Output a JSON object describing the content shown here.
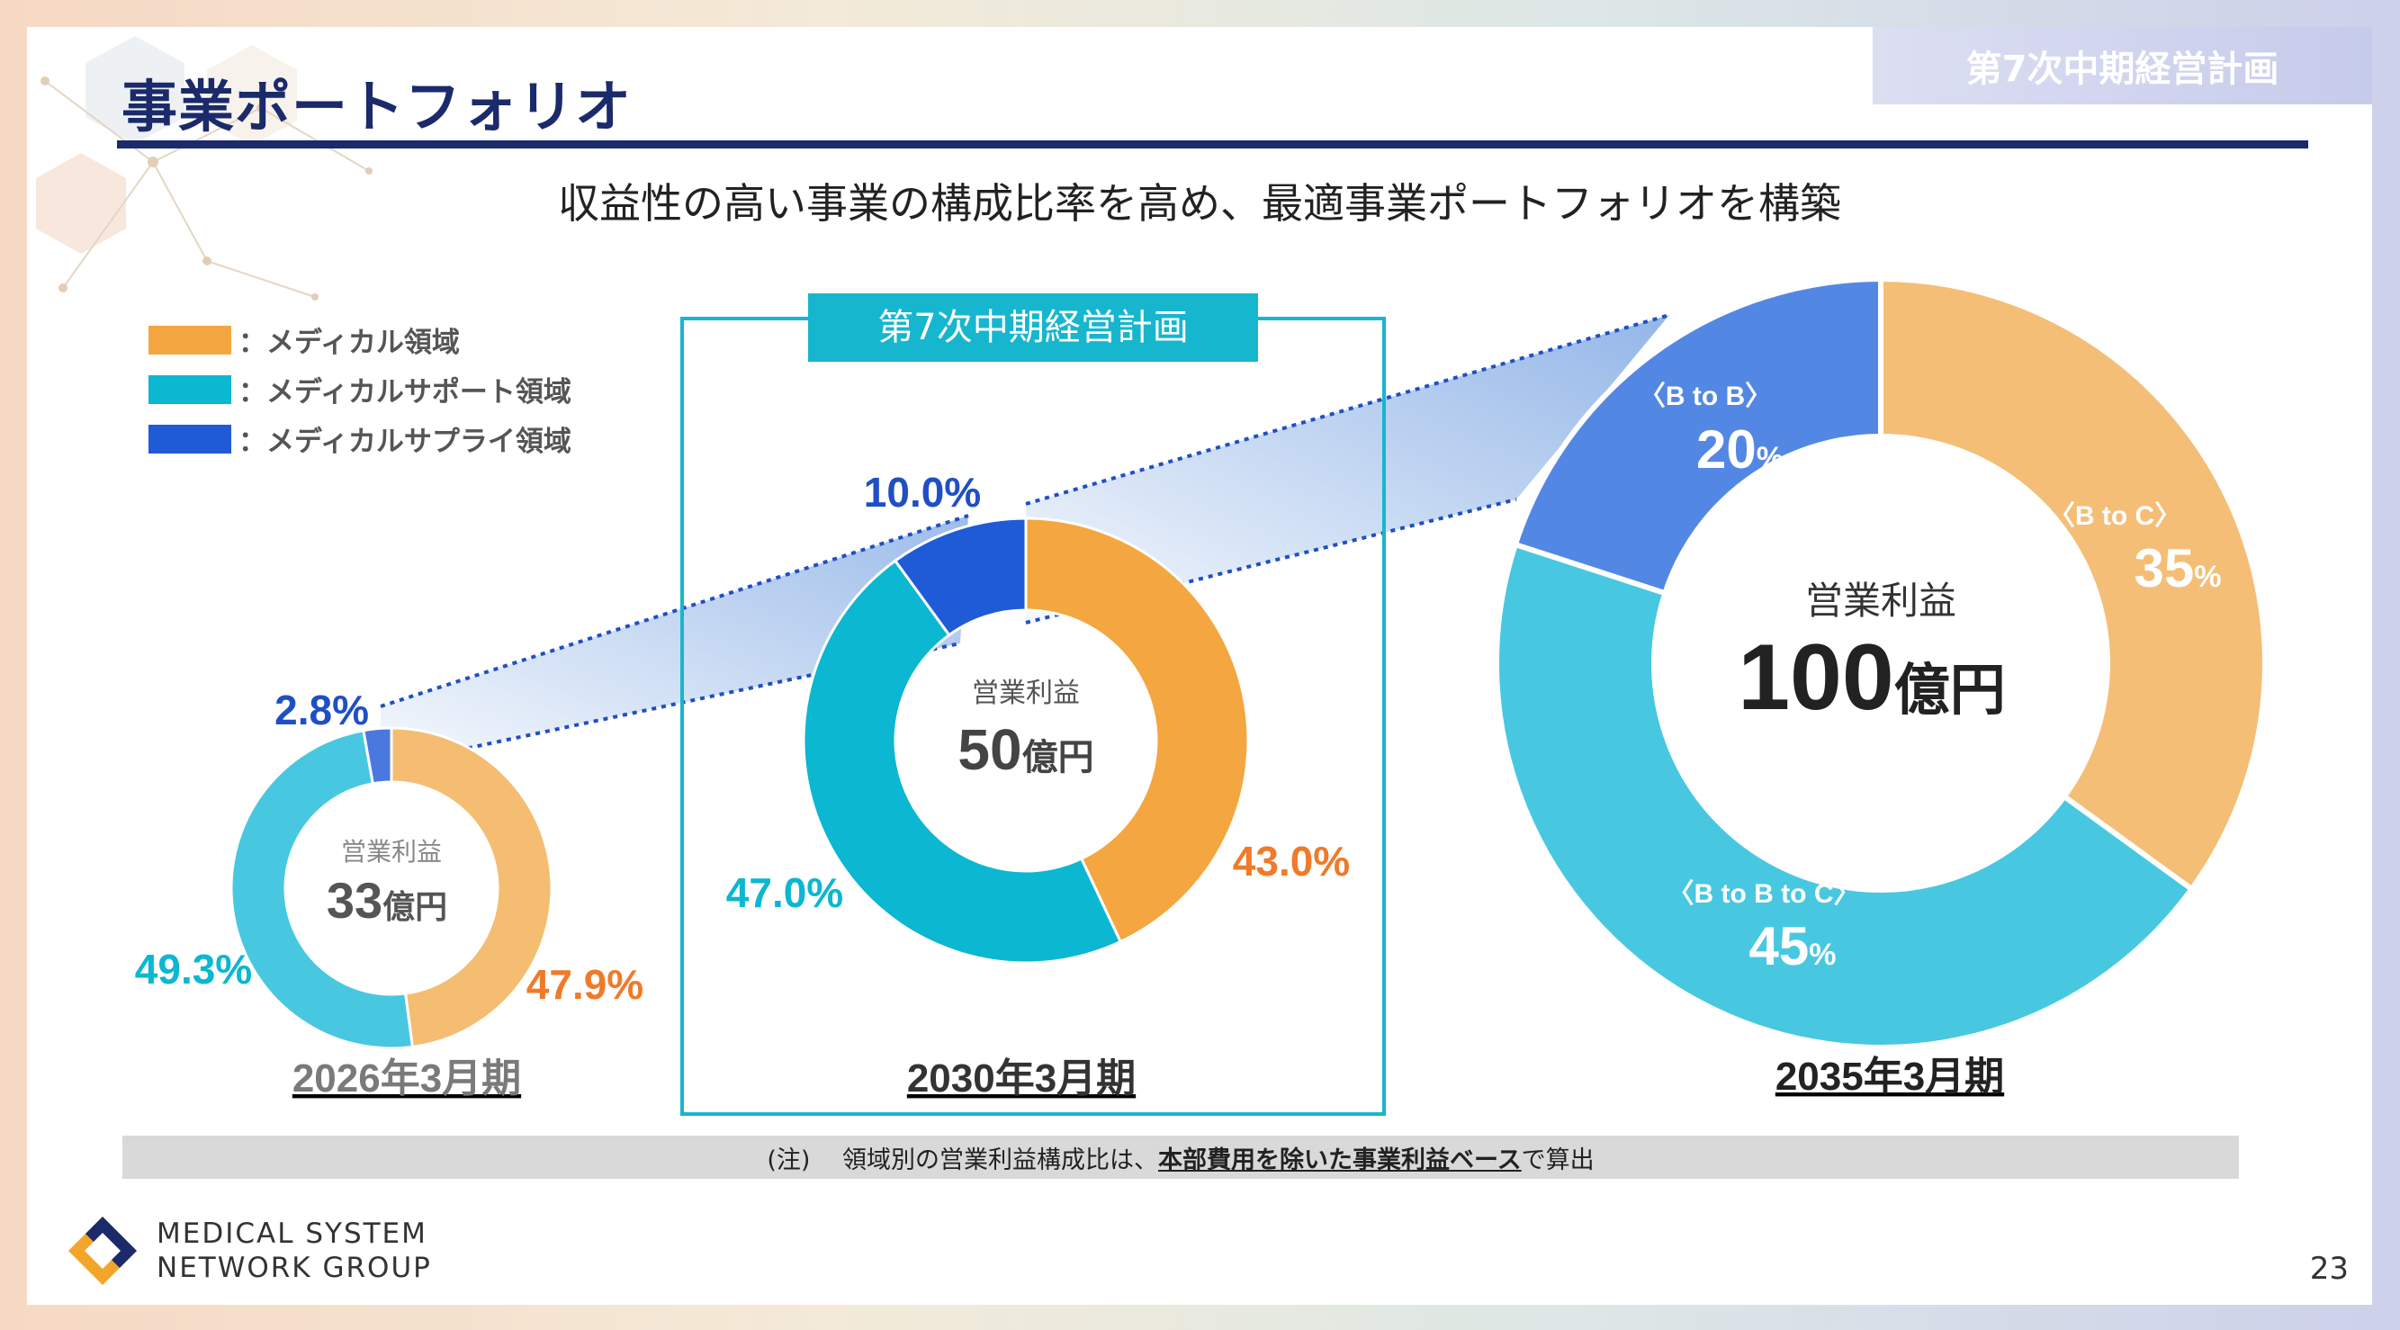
{
  "header": {
    "title": "事業ポートフォリオ",
    "plan_badge": "第7次中期経営計画"
  },
  "subtitle": "収益性の高い事業の構成比率を高め、最適事業ポートフォリオを構築",
  "legend": [
    {
      "label": "：メディカル領域",
      "color": "#f4a640"
    },
    {
      "label": "：メディカルサポート領域",
      "color": "#0bb7d1"
    },
    {
      "label": "：メディカルサプライ領域",
      "color": "#1f5bd6"
    }
  ],
  "plan_box_label": "第7次中期経営計画",
  "chart_data": [
    {
      "type": "pie",
      "variant": "donut",
      "period": "2026年3月期",
      "center_label": "営業利益",
      "center_value": "33",
      "center_unit": "億円",
      "categories": [
        "メディカル領域",
        "メディカルサポート領域",
        "メディカルサプライ領域"
      ],
      "values": [
        47.9,
        49.3,
        2.8
      ],
      "value_labels": [
        "47.9%",
        "49.3%",
        "2.8%"
      ],
      "colors": [
        "#f5bd72",
        "#48c8e0",
        "#4a78de"
      ]
    },
    {
      "type": "pie",
      "variant": "donut",
      "period": "2030年3月期",
      "center_label": "営業利益",
      "center_value": "50",
      "center_unit": "億円",
      "categories": [
        "メディカル領域",
        "メディカルサポート領域",
        "メディカルサプライ領域"
      ],
      "values": [
        43.0,
        47.0,
        10.0
      ],
      "value_labels": [
        "43.0%",
        "47.0%",
        "10.0%"
      ],
      "colors": [
        "#f4a640",
        "#0bb7d1",
        "#1f5bd6"
      ]
    },
    {
      "type": "pie",
      "variant": "donut",
      "period": "2035年3月期",
      "center_label": "営業利益",
      "center_value": "100",
      "center_unit": "億円",
      "categories": [
        "〈B to C〉",
        "〈B to B to C〉",
        "〈B to B〉"
      ],
      "values": [
        35,
        45,
        20
      ],
      "value_labels": [
        "35",
        "45",
        "20"
      ],
      "percent_sign": "%",
      "colors": [
        "#f5be76",
        "#48c8e0",
        "#5387e4"
      ]
    }
  ],
  "note": {
    "prefix": "(注)　 領域別の営業利益構成比は、",
    "emphasis": "本部費用を除いた事業利益ベース",
    "suffix": "で算出"
  },
  "logo": {
    "line1": "MEDICAL SYSTEM",
    "line2": "NETWORK GROUP"
  },
  "page_number": "23"
}
